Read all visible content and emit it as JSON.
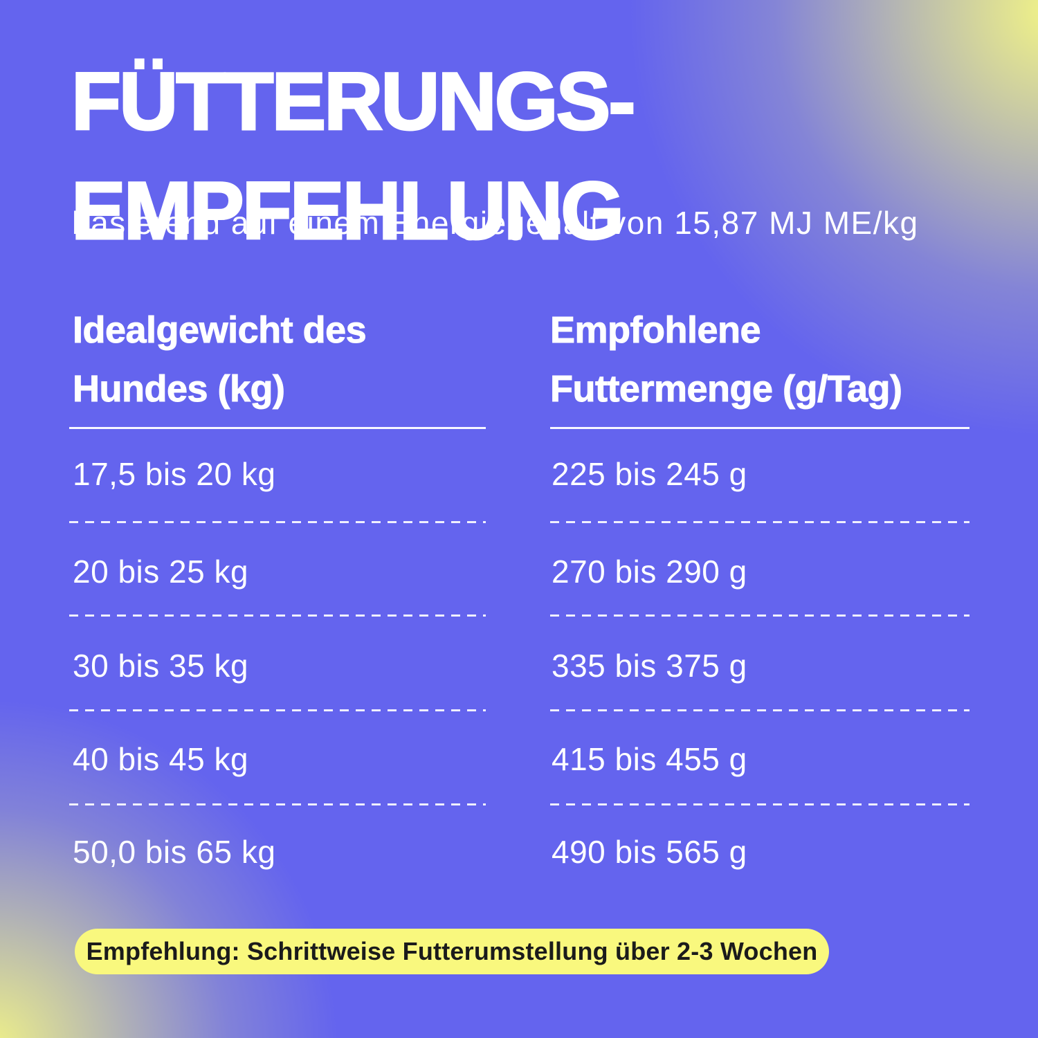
{
  "header": {
    "title_line1": "FÜTTERUNGS-",
    "title_line2": "EMPFEHLUNG",
    "subtitle": "basierend auf einem Energiegehalt von 15,87 MJ ME/kg"
  },
  "table": {
    "columns": [
      {
        "line1": "Idealgewicht des",
        "line2": "Hundes (kg)"
      },
      {
        "line1": "Empfohlene",
        "line2": "Futtermenge (g/Tag)"
      }
    ],
    "rows": [
      {
        "weight": "17,5 bis 20 kg",
        "amount": "225 bis 245 g"
      },
      {
        "weight": "20 bis 25 kg",
        "amount": "270 bis 290 g"
      },
      {
        "weight": "30 bis 35 kg",
        "amount": "335 bis 375 g"
      },
      {
        "weight": "40 bis 45 kg",
        "amount": "415 bis 455 g"
      },
      {
        "weight": "50,0 bis 65 kg",
        "amount": "490 bis 565 g"
      }
    ]
  },
  "footer": {
    "note": "Empfehlung: Schrittweise Futterumstellung über 2-3 Wochen"
  },
  "colors": {
    "background": "#6464ee",
    "glow_yellow": "#f7f982",
    "text": "#ffffff",
    "pill_background": "#f9f87e",
    "pill_text": "#1b1b1b"
  }
}
